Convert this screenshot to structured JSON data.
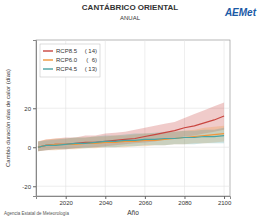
{
  "chart_data": {
    "type": "line",
    "title": "CANTÁBRICO ORIENTAL",
    "subtitle": "ANUAL",
    "x_label": "Año",
    "y_label": "Cambio duración olas de calor (días)",
    "logo": "AEMet",
    "source": "Agencia Estatal de Meteorología",
    "x": [
      2006,
      2010,
      2015,
      2020,
      2025,
      2030,
      2035,
      2040,
      2045,
      2050,
      2055,
      2060,
      2065,
      2070,
      2075,
      2080,
      2085,
      2090,
      2095,
      2100
    ],
    "series": [
      {
        "name": "RCP8.5",
        "n_label": "( 14)",
        "color": "#c9453f",
        "values": [
          0,
          1,
          1.5,
          1.5,
          2,
          2.5,
          2.5,
          3,
          3.5,
          4,
          4.5,
          5.5,
          6.5,
          7.5,
          8.5,
          10,
          11,
          12.5,
          14,
          16
        ],
        "lower": [
          -2,
          -1.5,
          -1,
          -1,
          -0.5,
          0,
          0,
          0.5,
          1,
          1.5,
          2,
          2.5,
          3,
          4,
          4.5,
          5.5,
          6,
          7,
          8,
          9
        ],
        "upper": [
          3,
          4,
          4.5,
          5,
          5,
          6,
          6,
          7,
          7.5,
          8,
          9,
          10,
          11,
          12,
          13,
          15,
          17,
          19,
          21,
          23
        ]
      },
      {
        "name": "RCP6.0",
        "n_label": "(  6)",
        "color": "#f0963c",
        "values": [
          0,
          1,
          1.5,
          1.5,
          1.5,
          2,
          2,
          2.5,
          2.5,
          3,
          3,
          3.5,
          3.5,
          4,
          4.5,
          5,
          5.5,
          6,
          6.5,
          7
        ],
        "lower": [
          -2,
          -1.5,
          -1.5,
          -1,
          -1,
          -0.5,
          -0.5,
          0,
          0,
          0,
          0.5,
          0.5,
          1,
          1,
          1.5,
          1.5,
          2,
          2,
          2.5,
          3
        ],
        "upper": [
          3,
          4,
          4.5,
          4.5,
          5,
          5,
          5.5,
          5.5,
          6,
          6,
          6.5,
          7,
          7,
          7.5,
          8,
          8.5,
          9,
          10,
          10.5,
          11
        ]
      },
      {
        "name": "RCP4.5",
        "n_label": "( 13)",
        "color": "#4aa3a3",
        "values": [
          0,
          1,
          1,
          1.5,
          2,
          2,
          2.5,
          3,
          3,
          3.5,
          3.5,
          4,
          4,
          4.5,
          4.5,
          5,
          5,
          5.5,
          5.5,
          6
        ],
        "lower": [
          -2,
          -1.5,
          -1,
          -1,
          -0.5,
          -0.5,
          0,
          0,
          0,
          0.5,
          0.5,
          1,
          1,
          1,
          1.5,
          1.5,
          1.5,
          2,
          2,
          2
        ],
        "upper": [
          3,
          3.5,
          4,
          4.5,
          5,
          5,
          5.5,
          6,
          6,
          6.5,
          7,
          7,
          7.5,
          8,
          8,
          8.5,
          8.5,
          9,
          9,
          10
        ]
      }
    ],
    "xlim": [
      2005,
      2103
    ],
    "xticks": [
      2020,
      2040,
      2060,
      2080,
      2100
    ],
    "ylim": [
      -25,
      55
    ],
    "yticks": [
      -20,
      0,
      20
    ],
    "grid": true,
    "legend": "upper left"
  }
}
